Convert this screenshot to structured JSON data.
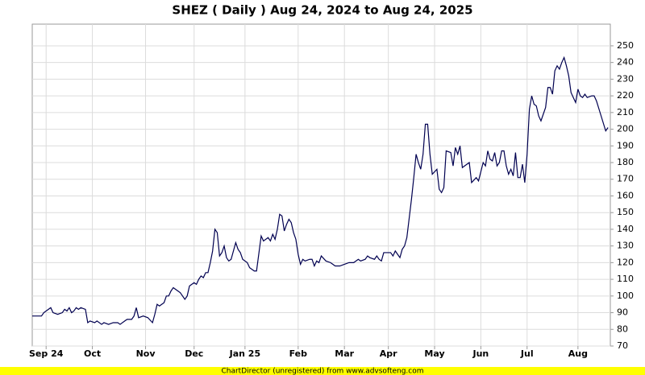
{
  "chart_data": {
    "type": "line",
    "title": "SHEZ ( Daily ) Aug 24, 2024 to Aug 24, 2025",
    "x": [
      0,
      2,
      4,
      5,
      7,
      8,
      9,
      11,
      13,
      14,
      15,
      16,
      17,
      18,
      19,
      20,
      21,
      23,
      24,
      25,
      27,
      28,
      30,
      31,
      33,
      35,
      37,
      38,
      40,
      41,
      43,
      44,
      45,
      46,
      48,
      50,
      52,
      53,
      54,
      55,
      57,
      58,
      59,
      60,
      61,
      63,
      64,
      66,
      67,
      68,
      70,
      71,
      72,
      73,
      74,
      75,
      76,
      77,
      78,
      79,
      80,
      81,
      82,
      83,
      84,
      85,
      86,
      88,
      89,
      90,
      91,
      93,
      94,
      96,
      97,
      99,
      100,
      102,
      103,
      104,
      105,
      106,
      107,
      108,
      109,
      110,
      111,
      112,
      113,
      114,
      115,
      116,
      117,
      118,
      120,
      121,
      122,
      123,
      124,
      125,
      127,
      129,
      131,
      133,
      135,
      137,
      139,
      141,
      142,
      144,
      145,
      146,
      148,
      149,
      150,
      151,
      152,
      154,
      155,
      156,
      157,
      158,
      159,
      160,
      161,
      162,
      164,
      165,
      166,
      167,
      168,
      169,
      170,
      171,
      172,
      173,
      175,
      176,
      177,
      178,
      179,
      181,
      182,
      183,
      184,
      185,
      186,
      187,
      189,
      190,
      192,
      193,
      195,
      196,
      197,
      198,
      199,
      200,
      201,
      202,
      203,
      204,
      205,
      206,
      207,
      208,
      209,
      210,
      211,
      212,
      213,
      214,
      215,
      216,
      217,
      218,
      219,
      220,
      222,
      223,
      224,
      225,
      226,
      227,
      228,
      229,
      230,
      231,
      232,
      233,
      234,
      235,
      236,
      237,
      238,
      239,
      240,
      242,
      243,
      244,
      246,
      248,
      249
    ],
    "series": [
      {
        "color": "#000050",
        "values": [
          88,
          88,
          88,
          90,
          92,
          93,
          90,
          89,
          90,
          92,
          91,
          93,
          90,
          91,
          93,
          92,
          93,
          92,
          84,
          85,
          84,
          85,
          83,
          84,
          83,
          84,
          84,
          83,
          85,
          86,
          86,
          88,
          93,
          87,
          88,
          87,
          84,
          89,
          95,
          94,
          96,
          100,
          100,
          103,
          105,
          103,
          102,
          98,
          100,
          106,
          108,
          107,
          110,
          112,
          111,
          114,
          114,
          120,
          127,
          140,
          138,
          124,
          126,
          130,
          123,
          121,
          122,
          132,
          128,
          126,
          122,
          120,
          117,
          115,
          115,
          136,
          133,
          135,
          133,
          137,
          134,
          140,
          149,
          148,
          139,
          143,
          146,
          144,
          138,
          134,
          125,
          119,
          122,
          121,
          122,
          122,
          118,
          121,
          120,
          124,
          121,
          120,
          118,
          118,
          119,
          120,
          120,
          122,
          121,
          122,
          124,
          123,
          122,
          124,
          122,
          121,
          126,
          126,
          126,
          124,
          127,
          125,
          123,
          128,
          130,
          135,
          158,
          171,
          185,
          180,
          176,
          185,
          203,
          203,
          185,
          173,
          176,
          164,
          162,
          165,
          187,
          186,
          178,
          189,
          185,
          190,
          177,
          178,
          180,
          168,
          171,
          169,
          180,
          178,
          187,
          182,
          181,
          186,
          178,
          180,
          187,
          187,
          178,
          173,
          176,
          172,
          186,
          171,
          171,
          179,
          168,
          185,
          212,
          220,
          215,
          214,
          208,
          205,
          213,
          225,
          225,
          221,
          235,
          238,
          236,
          240,
          243,
          238,
          232,
          222,
          219,
          216,
          224,
          220,
          219,
          221,
          219,
          220,
          220,
          217,
          208,
          199,
          201
        ]
      }
    ],
    "xlim": [
      0,
      250
    ],
    "xticks": [
      {
        "value": 6,
        "label": "Sep 24"
      },
      {
        "value": 26,
        "label": "Oct"
      },
      {
        "value": 49,
        "label": "Nov"
      },
      {
        "value": 70,
        "label": "Dec"
      },
      {
        "value": 92,
        "label": "Jan 25"
      },
      {
        "value": 115,
        "label": "Feb"
      },
      {
        "value": 135,
        "label": "Mar"
      },
      {
        "value": 154,
        "label": "Apr"
      },
      {
        "value": 174,
        "label": "May"
      },
      {
        "value": 194,
        "label": "Jun"
      },
      {
        "value": 214,
        "label": "Jul"
      },
      {
        "value": 236,
        "label": "Aug"
      }
    ],
    "ylim": [
      70,
      263
    ],
    "yticks": [
      70,
      80,
      90,
      100,
      110,
      120,
      130,
      140,
      150,
      160,
      170,
      180,
      190,
      200,
      210,
      220,
      230,
      240,
      250
    ],
    "grid": true
  },
  "footer": "ChartDirector (unregistered) from www.advsofteng.com"
}
